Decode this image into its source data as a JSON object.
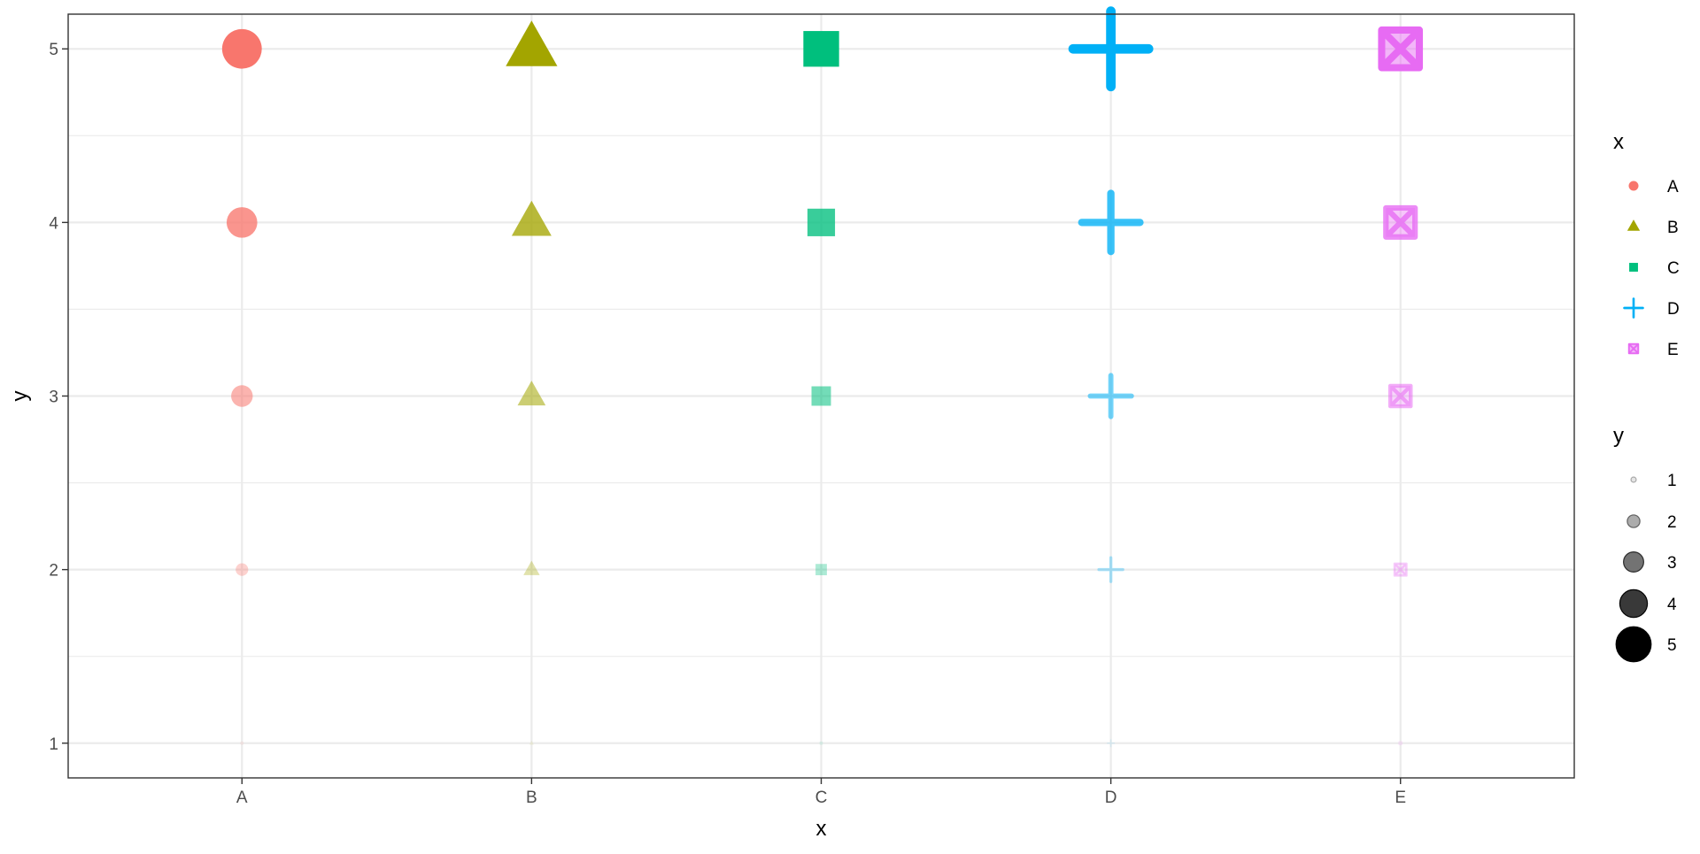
{
  "chart_data": {
    "type": "scatter",
    "xlabel": "x",
    "ylabel": "y",
    "categories": [
      "A",
      "B",
      "C",
      "D",
      "E"
    ],
    "y_ticks": [
      1,
      2,
      3,
      4,
      5
    ],
    "ylim": [
      0.8,
      5.2
    ],
    "grid": true,
    "series": [
      {
        "name": "A",
        "shape": "circle",
        "color": "#F8766D",
        "points": [
          {
            "x": "A",
            "y": 1
          },
          {
            "x": "A",
            "y": 2
          },
          {
            "x": "A",
            "y": 3
          },
          {
            "x": "A",
            "y": 4
          },
          {
            "x": "A",
            "y": 5
          }
        ]
      },
      {
        "name": "B",
        "shape": "triangle",
        "color": "#A3A500",
        "points": [
          {
            "x": "B",
            "y": 1
          },
          {
            "x": "B",
            "y": 2
          },
          {
            "x": "B",
            "y": 3
          },
          {
            "x": "B",
            "y": 4
          },
          {
            "x": "B",
            "y": 5
          }
        ]
      },
      {
        "name": "C",
        "shape": "square",
        "color": "#00BF7D",
        "points": [
          {
            "x": "C",
            "y": 1
          },
          {
            "x": "C",
            "y": 2
          },
          {
            "x": "C",
            "y": 3
          },
          {
            "x": "C",
            "y": 4
          },
          {
            "x": "C",
            "y": 5
          }
        ]
      },
      {
        "name": "D",
        "shape": "plus",
        "color": "#00B0F6",
        "points": [
          {
            "x": "D",
            "y": 1
          },
          {
            "x": "D",
            "y": 2
          },
          {
            "x": "D",
            "y": 3
          },
          {
            "x": "D",
            "y": 4
          },
          {
            "x": "D",
            "y": 5
          }
        ]
      },
      {
        "name": "E",
        "shape": "square-cross",
        "color": "#E76BF3",
        "points": [
          {
            "x": "E",
            "y": 1
          },
          {
            "x": "E",
            "y": 2
          },
          {
            "x": "E",
            "y": 3
          },
          {
            "x": "E",
            "y": 4
          },
          {
            "x": "E",
            "y": 5
          }
        ]
      }
    ],
    "legends": [
      {
        "title": "x",
        "entries": [
          {
            "label": "A",
            "shape": "circle",
            "color": "#F8766D"
          },
          {
            "label": "B",
            "shape": "triangle",
            "color": "#A3A500"
          },
          {
            "label": "C",
            "shape": "square",
            "color": "#00BF7D"
          },
          {
            "label": "D",
            "shape": "plus",
            "color": "#00B0F6"
          },
          {
            "label": "E",
            "shape": "square-cross",
            "color": "#E76BF3"
          }
        ]
      },
      {
        "title": "y",
        "entries": [
          {
            "label": "1",
            "value": 1
          },
          {
            "label": "2",
            "value": 2
          },
          {
            "label": "3",
            "value": 3
          },
          {
            "label": "4",
            "value": 4
          },
          {
            "label": "5",
            "value": 5
          }
        ]
      }
    ],
    "legend_position": "right",
    "size_and_alpha_mapped_to": "y"
  }
}
